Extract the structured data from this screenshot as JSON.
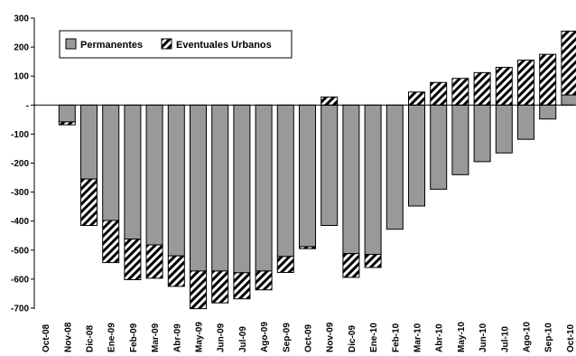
{
  "chart_data": {
    "type": "bar",
    "stacked": true,
    "categories": [
      "Oct-08",
      "Nov-08",
      "Dic-08",
      "Ene-09",
      "Feb-09",
      "Mar-09",
      "Abr-09",
      "May-09",
      "Jun-09",
      "Jul-09",
      "Ago-09",
      "Sep-09",
      "Oct-09",
      "Nov-09",
      "Dic-09",
      "Ene-10",
      "Feb-10",
      "Mar-10",
      "Abr-10",
      "May-10",
      "Jun-10",
      "Jul-10",
      "Ago-10",
      "Sep-10",
      "Oct-10"
    ],
    "tick_labels": [
      "Oct-08",
      "Nov-08",
      "Dic-08",
      "Ene-09",
      "Feb-09",
      "Mar-09",
      "Abr-09",
      "May-09",
      "Jun-09",
      "Jul-09",
      "Ago-09",
      "Sep-09",
      "Oct-09",
      "Nov-09",
      "Dic-09",
      "Ene-10",
      "Feb-10",
      "Mar-10",
      "Abr-10",
      "May-10",
      "Jun-10",
      "Jul-10",
      "Ago-10",
      "Sep-10",
      "Oct-10"
    ],
    "series": [
      {
        "name": "Permanentes",
        "pattern": "solid",
        "color": "#999999",
        "values": [
          0,
          -58,
          -255,
          -398,
          -462,
          -482,
          -520,
          -572,
          -572,
          -578,
          -572,
          -522,
          -488,
          -415,
          -512,
          -515,
          -428,
          -348,
          -290,
          -240,
          -195,
          -165,
          -118,
          -48,
          35
        ]
      },
      {
        "name": "Eventuales Urbanos",
        "pattern": "hatched",
        "values": [
          0,
          -10,
          -160,
          -145,
          -140,
          -115,
          -105,
          -130,
          -110,
          -90,
          -65,
          -55,
          -7,
          28,
          -82,
          -45,
          0,
          45,
          78,
          92,
          112,
          130,
          155,
          175,
          220
        ]
      }
    ],
    "y_ticks": [
      "300",
      "200",
      "100",
      "-",
      "-100",
      "-200",
      "-300",
      "-400",
      "-500",
      "-600",
      "-700"
    ],
    "ylim": [
      -700,
      300
    ],
    "grid": false,
    "legend_position": "top-left"
  }
}
